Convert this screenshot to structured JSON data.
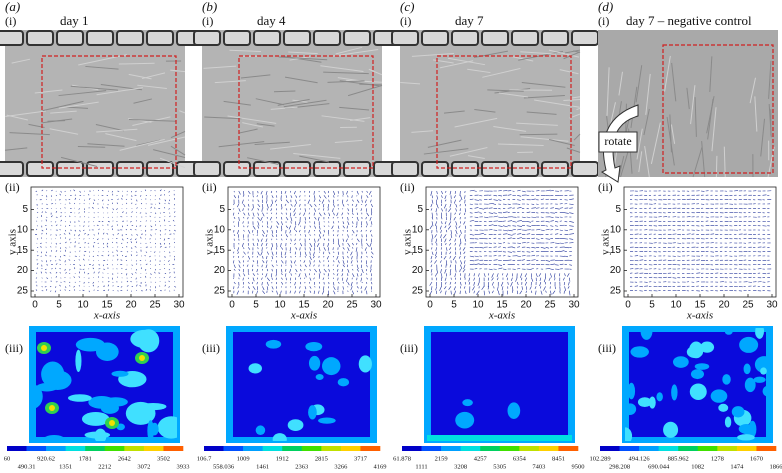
{
  "panels": [
    {
      "letter": "(a)",
      "title": "day 1",
      "label_i": "(i)",
      "label_ii": "(ii)",
      "label_iii": "(iii)",
      "xticks": [
        0,
        5,
        10,
        15,
        20,
        25,
        30
      ],
      "yticks": [
        5,
        10,
        15,
        20,
        25
      ],
      "xlabel": "x-axis",
      "ylabel": "y axis",
      "colorbar": [
        60,
        490.31,
        920.62,
        1351,
        1781,
        2212,
        2642,
        3072,
        3502,
        3933
      ]
    },
    {
      "letter": "(b)",
      "title": "day 4",
      "label_i": "(i)",
      "label_ii": "(ii)",
      "label_iii": "(iii)",
      "xticks": [
        0,
        5,
        10,
        15,
        20,
        25,
        30
      ],
      "yticks": [
        5,
        10,
        15,
        20,
        25
      ],
      "xlabel": "x-axis",
      "ylabel": "y axis",
      "colorbar": [
        106.7,
        558.036,
        1009,
        1461,
        1912,
        2363,
        2815,
        3266,
        3717,
        4169
      ]
    },
    {
      "letter": "(c)",
      "title": "day 7",
      "label_i": "(i)",
      "label_ii": "(ii)",
      "label_iii": "(iii)",
      "xticks": [
        0,
        5,
        10,
        15,
        20,
        25,
        30
      ],
      "yticks": [
        5,
        10,
        15,
        20,
        25
      ],
      "xlabel": "x-axis",
      "ylabel": "y axis",
      "colorbar": [
        61.878,
        1111,
        2159,
        3208,
        4257,
        5305,
        6354,
        7403,
        8451,
        9500
      ]
    },
    {
      "letter": "(d)",
      "title": "day 7 – negative control",
      "label_i": "(i)",
      "label_ii": "(ii)",
      "label_iii": "(iii)",
      "xticks": [
        0,
        5,
        10,
        15,
        20,
        25,
        30
      ],
      "yticks": [
        5,
        10,
        15,
        20,
        25
      ],
      "xlabel": "x-axis",
      "ylabel": "y axis",
      "colorbar": [
        102.289,
        298.208,
        494.126,
        690.044,
        885.962,
        1082,
        1278,
        1474,
        1670,
        1866
      ]
    }
  ],
  "rotate": "rotate"
}
